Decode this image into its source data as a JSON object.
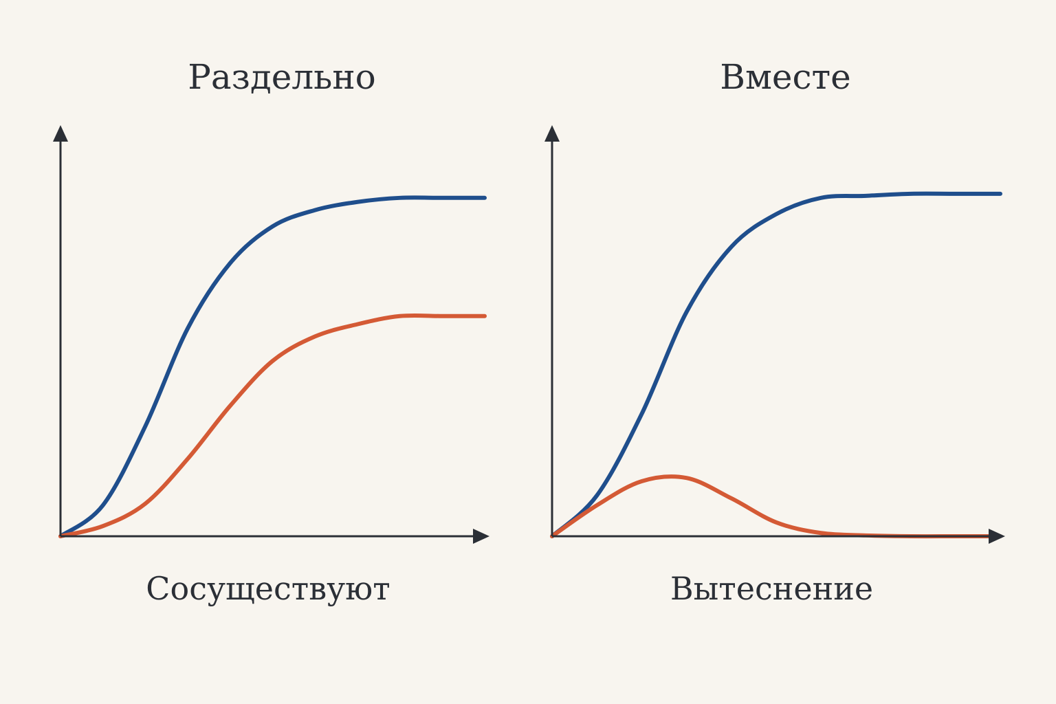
{
  "chart_data": [
    {
      "type": "line",
      "title": "Раздельно",
      "xlabel": "Сосуществуют",
      "x": [
        0,
        1,
        2,
        3,
        4,
        5,
        6,
        7,
        8,
        9,
        10
      ],
      "xlim": [
        0,
        10
      ],
      "ylim": [
        0,
        100
      ],
      "series": [
        {
          "color": "#1f4e8c",
          "values": [
            0,
            7.6,
            27,
            51,
            67,
            76,
            80,
            82,
            83,
            83,
            83
          ]
        },
        {
          "color": "#d45a35",
          "values": [
            0,
            2.5,
            8,
            19,
            32,
            43,
            49,
            52,
            54,
            54,
            54
          ]
        }
      ]
    },
    {
      "type": "line",
      "title": "Вместе",
      "xlabel": "Вытеснение",
      "x": [
        0,
        1,
        2,
        3,
        4,
        5,
        6,
        7,
        8,
        9,
        10
      ],
      "xlim": [
        0,
        10
      ],
      "ylim": [
        0,
        100
      ],
      "series": [
        {
          "color": "#1f4e8c",
          "values": [
            0,
            10,
            30,
            55,
            71,
            79,
            83,
            83.5,
            84,
            84,
            84
          ]
        },
        {
          "color": "#d45a35",
          "values": [
            0,
            7.6,
            13.5,
            14.3,
            9.3,
            3.4,
            0.8,
            0.2,
            0,
            0,
            0
          ]
        }
      ]
    }
  ]
}
